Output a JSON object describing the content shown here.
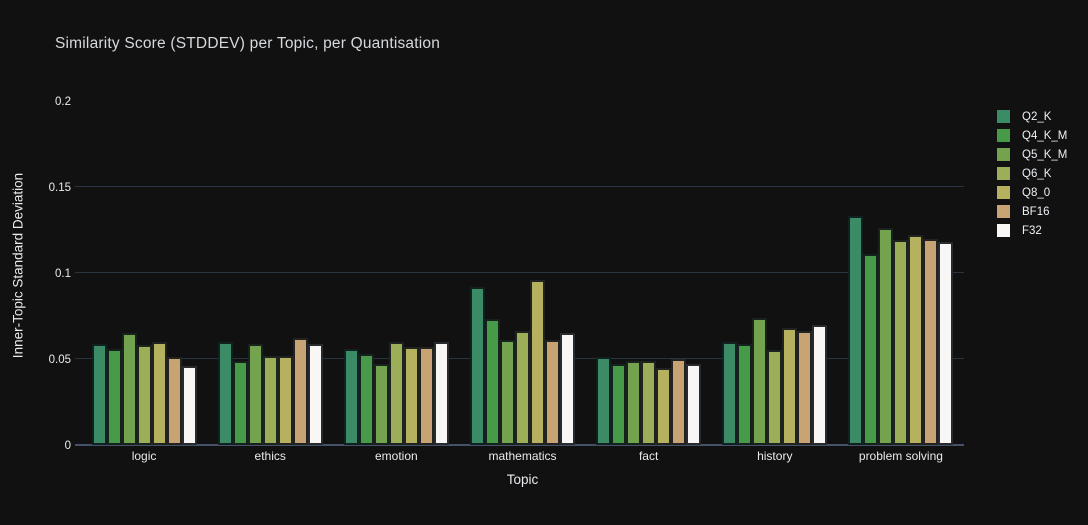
{
  "page": {
    "title": "Similarity Score (STDDEV) per Topic, per Quantisation"
  },
  "colors": {
    "background": "#111111",
    "grid": "#283442",
    "zero_line": "#46526a",
    "title_text": "#d6d9dd",
    "tick_text": "#e8ebef",
    "legend_text": "#edf0f4"
  },
  "chart_data": {
    "type": "bar",
    "title": "Similarity Score (STDDEV) per Topic, per Quantisation",
    "xlabel": "Topic",
    "ylabel": "Inner-Topic Standard Deviation",
    "categories": [
      "logic",
      "ethics",
      "emotion",
      "mathematics",
      "fact",
      "history",
      "problem solving"
    ],
    "series": [
      {
        "name": "Q2_K",
        "color": "#3b8b66",
        "values": [
          0.059,
          0.06,
          0.056,
          0.092,
          0.051,
          0.06,
          0.133
        ]
      },
      {
        "name": "Q4_K_M",
        "color": "#469a48",
        "values": [
          0.056,
          0.049,
          0.053,
          0.073,
          0.047,
          0.059,
          0.111
        ]
      },
      {
        "name": "Q5_K_M",
        "color": "#74a350",
        "values": [
          0.065,
          0.059,
          0.047,
          0.061,
          0.049,
          0.074,
          0.126
        ]
      },
      {
        "name": "Q6_K",
        "color": "#9cae58",
        "values": [
          0.058,
          0.052,
          0.06,
          0.066,
          0.049,
          0.055,
          0.119
        ]
      },
      {
        "name": "Q8_0",
        "color": "#b5b15f",
        "values": [
          0.06,
          0.052,
          0.057,
          0.096,
          0.045,
          0.068,
          0.122
        ]
      },
      {
        "name": "BF16",
        "color": "#c8a475",
        "values": [
          0.051,
          0.062,
          0.057,
          0.061,
          0.05,
          0.066,
          0.12
        ]
      },
      {
        "name": "F32",
        "color": "#f9f7f5",
        "values": [
          0.046,
          0.059,
          0.06,
          0.065,
          0.047,
          0.07,
          0.118
        ]
      }
    ],
    "yticks": [
      {
        "value": 0,
        "label": "0"
      },
      {
        "value": 0.05,
        "label": "0.05"
      },
      {
        "value": 0.1,
        "label": "0.1"
      },
      {
        "value": 0.15,
        "label": "0.15"
      },
      {
        "value": 0.2,
        "label": "0.2"
      }
    ],
    "gridlines_at": [
      0.05,
      0.1,
      0.15
    ],
    "ylim": [
      0,
      0.209
    ],
    "grid": true,
    "legend_position": "right"
  }
}
